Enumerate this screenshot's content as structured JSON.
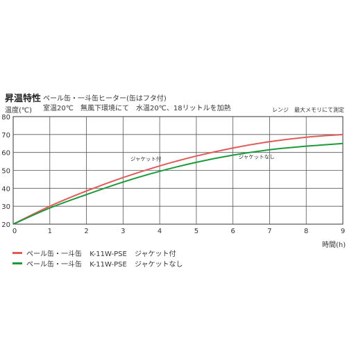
{
  "header": {
    "title": "昇温特性",
    "subtitle": "ペール缶・一斗缶ヒーター(缶はフタ付)",
    "conditions": "室温20℃　無風下環境にて　水温20℃、18リットルを加熱",
    "note": "レンジ　最大メモリにて測定"
  },
  "chart_data": {
    "type": "line",
    "ylabel": "温度(℃)",
    "xlabel": "時間(h)",
    "xlim": [
      0,
      9
    ],
    "ylim": [
      20,
      80
    ],
    "x_ticks": [
      0,
      1,
      2,
      3,
      4,
      5,
      6,
      7,
      8,
      9
    ],
    "y_ticks": [
      20,
      30,
      40,
      50,
      60,
      70,
      80
    ],
    "grid": true,
    "x": [
      0,
      1,
      2,
      3,
      4,
      5,
      6,
      7,
      8,
      9
    ],
    "series": [
      {
        "name": "ペール缶・一斗缶　K-11W-PSE　ジャケット付",
        "color": "#e05a58",
        "values": [
          20,
          30,
          38.5,
          46,
          52.5,
          58,
          62.5,
          66,
          68.5,
          70
        ]
      },
      {
        "name": "ペール缶・一斗缶　K-11W-PSE　ジャケットなし",
        "color": "#1a9a3a",
        "values": [
          20,
          29,
          36.5,
          43.5,
          49.5,
          54.5,
          58.5,
          61.5,
          63.5,
          65
        ]
      }
    ],
    "annotations": [
      {
        "text": "ジャケット付",
        "x": 3.2,
        "y": 55.5
      },
      {
        "text": "ジャケットなし",
        "x": 6.15,
        "y": 56.5
      }
    ],
    "legend": [
      {
        "product": "ペール缶・一斗缶",
        "model": "K-11W-PSE",
        "variant": "ジャケット付",
        "color": "#e05a58"
      },
      {
        "product": "ペール缶・一斗缶",
        "model": "K-11W-PSE",
        "variant": "ジャケットなし",
        "color": "#1a9a3a"
      }
    ]
  }
}
